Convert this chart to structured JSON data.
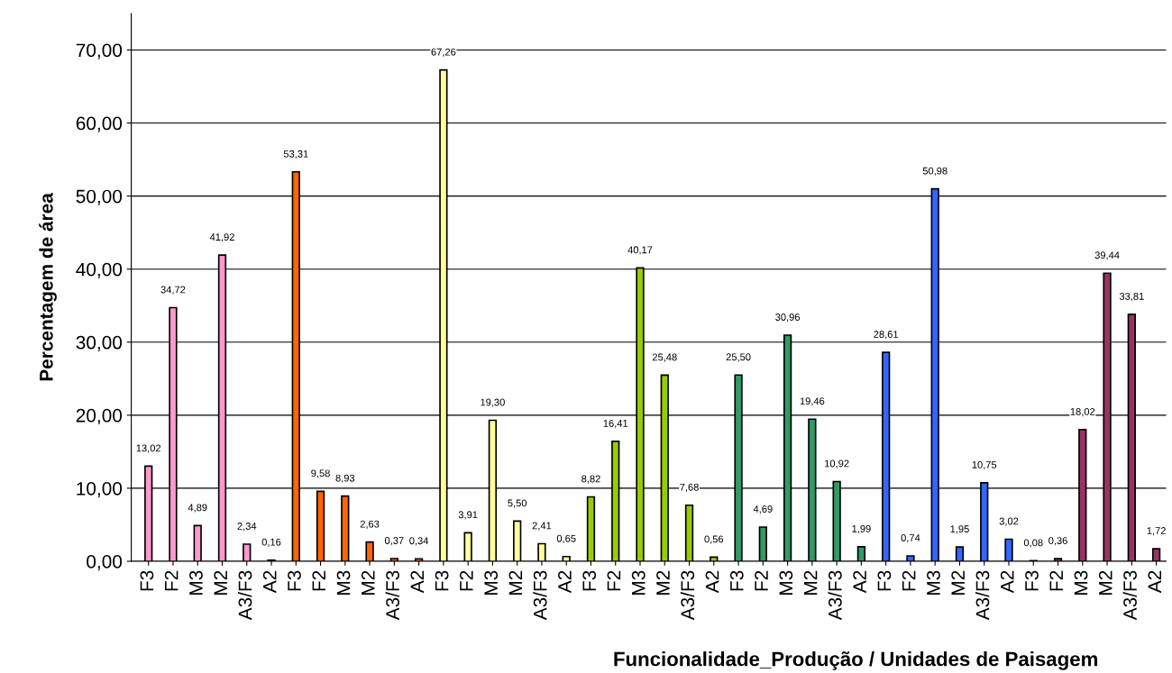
{
  "chart_data": {
    "type": "bar",
    "xlabel": "Funcionalidade_Produção / Unidades de Paisagem",
    "ylabel": "Percentagem de área",
    "categories": [
      "F3",
      "F2",
      "M3",
      "M2",
      "A3/F3",
      "A2",
      "F3",
      "F2",
      "M3",
      "M2",
      "A3/F3",
      "A2",
      "F3",
      "F2",
      "M3",
      "M2",
      "A3/F3",
      "A2",
      "F3",
      "F2",
      "M3",
      "M2",
      "A3/F3",
      "A2",
      "F3",
      "F2",
      "M3",
      "M2",
      "A3/F3",
      "A2",
      "F3",
      "F2",
      "M3",
      "M2",
      "A3/F3",
      "A2",
      "F3",
      "F2",
      "M3",
      "M2",
      "A3/F3",
      "A2"
    ],
    "values": [
      13.02,
      34.72,
      4.89,
      41.92,
      2.34,
      0.16,
      53.31,
      9.58,
      8.93,
      2.63,
      0.37,
      0.34,
      67.26,
      3.91,
      19.3,
      5.5,
      2.41,
      0.65,
      8.82,
      16.41,
      40.17,
      25.48,
      7.68,
      0.56,
      25.5,
      4.69,
      30.96,
      19.46,
      10.92,
      1.99,
      28.61,
      0.74,
      50.98,
      1.95,
      10.75,
      3.02,
      0.08,
      0.36,
      18.02,
      39.44,
      33.81,
      1.72
    ],
    "value_labels": [
      "13,02",
      "34,72",
      "4,89",
      "41,92",
      "2,34",
      "0,16",
      "53,31",
      "9,58",
      "8,93",
      "2,63",
      "0,37",
      "0,34",
      "67,26",
      "3,91",
      "19,30",
      "5,50",
      "2,41",
      "0,65",
      "8,82",
      "16,41",
      "40,17",
      "25,48",
      "7,68",
      "0,56",
      "25,50",
      "4,69",
      "30,96",
      "19,46",
      "10,92",
      "1,99",
      "28,61",
      "0,74",
      "50,98",
      "1,95",
      "10,75",
      "3,02",
      "0,08",
      "0,36",
      "18,02",
      "39,44",
      "33,81",
      "1,72"
    ],
    "colors": [
      "#ff99cc",
      "#ff99cc",
      "#ff99cc",
      "#ff99cc",
      "#ff99cc",
      "#ff99cc",
      "#ff6600",
      "#ff6600",
      "#ff6600",
      "#ff6600",
      "#ff6600",
      "#ff6600",
      "#ffff99",
      "#ffff99",
      "#ffff99",
      "#ffff99",
      "#ffff99",
      "#ffff99",
      "#99cc00",
      "#99cc00",
      "#99cc00",
      "#99cc00",
      "#99cc00",
      "#99cc00",
      "#339966",
      "#339966",
      "#339966",
      "#339966",
      "#339966",
      "#339966",
      "#3366ff",
      "#3366ff",
      "#3366ff",
      "#3366ff",
      "#3366ff",
      "#3366ff",
      "#993366",
      "#993366",
      "#993366",
      "#993366",
      "#993366",
      "#993366"
    ],
    "ylim": [
      0,
      75
    ],
    "yticks": [
      {
        "value": 0,
        "label": "0,00"
      },
      {
        "value": 10,
        "label": "10,00"
      },
      {
        "value": 20,
        "label": "20,00"
      },
      {
        "value": 30,
        "label": "30,00"
      },
      {
        "value": 40,
        "label": "40,00"
      },
      {
        "value": 50,
        "label": "50,00"
      },
      {
        "value": 60,
        "label": "60,00"
      },
      {
        "value": 70,
        "label": "70,00"
      }
    ],
    "grid": "y",
    "legend": false
  }
}
